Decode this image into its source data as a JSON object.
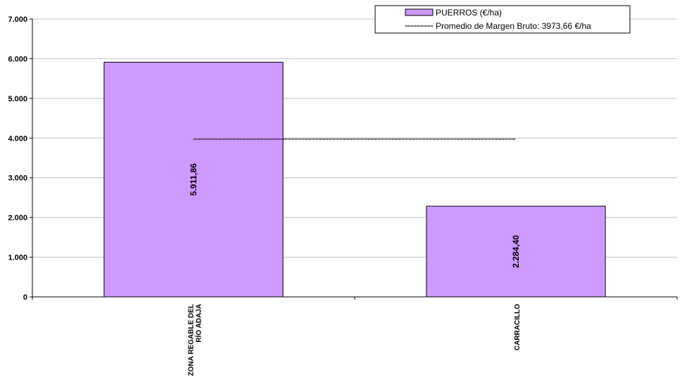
{
  "chart_data": {
    "type": "bar",
    "categories": [
      "ZONA REGABLE DEL RÍO ADAJA",
      "CARRACILLO"
    ],
    "category_lines": [
      [
        "ZONA REGABLE DEL",
        "RÍO ADAJA"
      ],
      [
        "CARRACILLO"
      ]
    ],
    "series": [
      {
        "name": "PUERROS (€/ha)",
        "values": [
          5911.86,
          2284.4
        ],
        "labels": [
          "5.911,86",
          "2.284,40"
        ],
        "color": "#cc99ff"
      }
    ],
    "average": {
      "name": "Promedio de Margen Bruto: 3973,66 €/ha",
      "value": 3973.66,
      "color": "#000000"
    },
    "ylim": [
      0,
      7000
    ],
    "yticks": [
      0,
      1000,
      2000,
      3000,
      4000,
      5000,
      6000,
      7000
    ],
    "ytick_labels": [
      "0",
      "1.000",
      "2.000",
      "3.000",
      "4.000",
      "5.000",
      "6.000",
      "7.000"
    ],
    "grid": true,
    "gridline_color": "#c0c0c0",
    "legend_position": "top-right"
  }
}
